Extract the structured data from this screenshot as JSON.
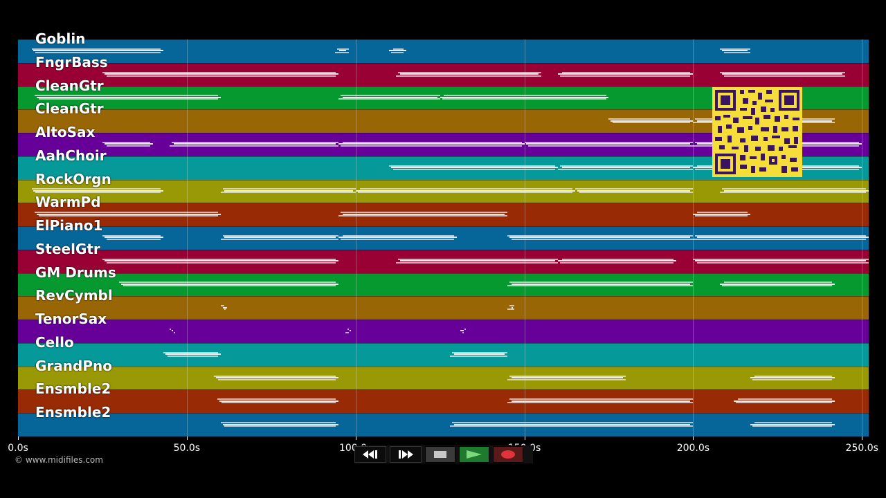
{
  "tracks": [
    {
      "name": "Goblin",
      "color": "#066699"
    },
    {
      "name": "FngrBass",
      "color": "#990033"
    },
    {
      "name": "CleanGtr",
      "color": "#069930"
    },
    {
      "name": "CleanGtr",
      "color": "#996606"
    },
    {
      "name": "AltoSax",
      "color": "#660099"
    },
    {
      "name": "AahChoir",
      "color": "#069999"
    },
    {
      "name": "RockOrgn",
      "color": "#999906"
    },
    {
      "name": "WarmPd",
      "color": "#992a06"
    },
    {
      "name": "ElPiano1",
      "color": "#066699"
    },
    {
      "name": "SteelGtr",
      "color": "#990033"
    },
    {
      "name": "GM Drums",
      "color": "#069930"
    },
    {
      "name": "RevCymbl",
      "color": "#996606"
    },
    {
      "name": "TenorSax",
      "color": "#660099"
    },
    {
      "name": "Cello",
      "color": "#069999"
    },
    {
      "name": "GrandPno",
      "color": "#999906"
    },
    {
      "name": "Ensmble2",
      "color": "#992a06"
    },
    {
      "name": "Ensmble2",
      "color": "#066699"
    }
  ],
  "timeline": {
    "max_seconds": 252,
    "ticks": [
      {
        "value": 0,
        "label": "0.0s"
      },
      {
        "value": 50,
        "label": "50.0s"
      },
      {
        "value": 100,
        "label": "100.0s"
      },
      {
        "value": 150,
        "label": "150.0s"
      },
      {
        "value": 200,
        "label": "200.0s"
      },
      {
        "value": 250,
        "label": "250.0s"
      }
    ]
  },
  "notes": [
    [
      [
        4,
        43
      ],
      [
        94,
        98
      ],
      [
        110,
        115
      ],
      [
        208,
        217
      ]
    ],
    [
      [
        25,
        95
      ],
      [
        112,
        155
      ],
      [
        160,
        200
      ],
      [
        208,
        245
      ]
    ],
    [
      [
        5,
        60
      ],
      [
        95,
        125
      ],
      [
        125,
        175
      ]
    ],
    [
      [
        175,
        200
      ],
      [
        200,
        242
      ]
    ],
    [
      [
        25,
        40
      ],
      [
        45,
        95
      ],
      [
        95,
        150
      ],
      [
        150,
        200
      ],
      [
        200,
        250
      ]
    ],
    [
      [
        110,
        160
      ],
      [
        160,
        200
      ],
      [
        200,
        250
      ]
    ],
    [
      [
        4,
        43
      ],
      [
        60,
        100
      ],
      [
        100,
        165
      ],
      [
        165,
        200
      ],
      [
        208,
        252
      ]
    ],
    [
      [
        5,
        60
      ],
      [
        95,
        145
      ],
      [
        200,
        217
      ]
    ],
    [
      [
        25,
        43
      ],
      [
        60,
        95
      ],
      [
        95,
        130
      ],
      [
        145,
        200
      ],
      [
        200,
        252
      ]
    ],
    [
      [
        25,
        95
      ],
      [
        112,
        160
      ],
      [
        160,
        195
      ],
      [
        200,
        252
      ]
    ],
    [
      [
        30,
        95
      ],
      [
        145,
        200
      ],
      [
        208,
        242
      ]
    ],
    [
      [
        60,
        62
      ],
      [
        145,
        147
      ]
    ],
    [
      [
        45,
        46
      ],
      [
        97,
        98
      ],
      [
        131,
        132
      ]
    ],
    [
      [
        43,
        60
      ],
      [
        128,
        145
      ]
    ],
    [
      [
        58,
        95
      ],
      [
        145,
        180
      ],
      [
        217,
        242
      ]
    ],
    [
      [
        59,
        95
      ],
      [
        145,
        200
      ],
      [
        212,
        242
      ]
    ],
    [
      [
        60,
        95
      ],
      [
        128,
        200
      ],
      [
        217,
        242
      ]
    ]
  ],
  "transport": {
    "rewind_icon": "rewind-icon",
    "ffwd_icon": "fast-forward-icon",
    "stop_icon": "stop-icon",
    "play_icon": "play-icon",
    "record_icon": "record-icon"
  },
  "footer": {
    "copyright": "© www.midifiles.com"
  },
  "qr_icon": "qr-code-icon"
}
